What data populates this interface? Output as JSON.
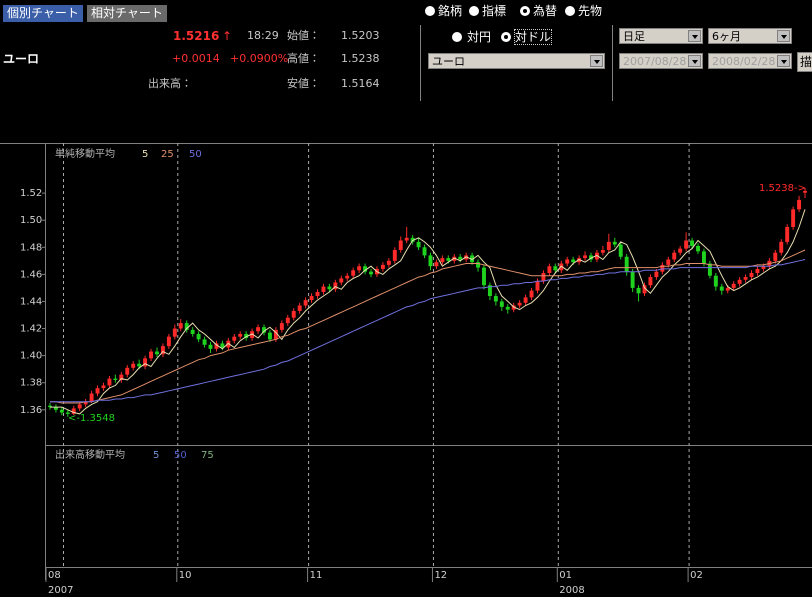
{
  "header": {
    "tabs": [
      "個別チャート",
      "相対チャート"
    ],
    "quote": {
      "name": "ユーロ",
      "price": "1.5216",
      "arrow": "↑",
      "time": "18:29",
      "change": "+0.0014",
      "change_pct": "+0.0900%",
      "open_label": "始値：",
      "open": "1.5203",
      "high_label": "高値：",
      "high": "1.5238",
      "low_label": "安値：",
      "low": "1.5164",
      "volume_label": "出来高："
    }
  },
  "controls": {
    "market_radios": [
      "銘柄",
      "指標",
      "為替",
      "先物"
    ],
    "currency_radios": [
      "対円",
      "対ドル"
    ],
    "currency_select": "ユーロ",
    "period_select": "日足",
    "range_select": "6ヶ月",
    "date_from": "2007/08/28",
    "date_to": "2008/02/28",
    "draw_button": "描"
  },
  "chart_data": {
    "type": "candlestick",
    "legend_title": "単純移動平均",
    "categories": [
      "08",
      null,
      null,
      null,
      null,
      null,
      null,
      null,
      null,
      null,
      null,
      null,
      null,
      null,
      null,
      null,
      null,
      null,
      null,
      null,
      null,
      null,
      "10",
      null,
      null,
      null,
      null,
      null,
      null,
      null,
      null,
      null,
      null,
      null,
      null,
      null,
      null,
      null,
      null,
      null,
      null,
      null,
      null,
      null,
      "11",
      null,
      null,
      null,
      null,
      null,
      null,
      null,
      null,
      null,
      null,
      null,
      null,
      null,
      null,
      null,
      null,
      null,
      null,
      null,
      null,
      "12",
      null,
      null,
      null,
      null,
      null,
      null,
      null,
      null,
      null,
      null,
      null,
      null,
      null,
      null,
      null,
      null,
      null,
      null,
      null,
      null,
      "01",
      null,
      null,
      null,
      null,
      null,
      null,
      null,
      null,
      null,
      null,
      null,
      null,
      null,
      null,
      null,
      null,
      null,
      null,
      null,
      null,
      null,
      "02",
      null,
      null,
      null,
      null,
      null,
      null,
      null,
      null,
      null,
      null,
      null,
      null,
      null,
      null,
      null,
      null,
      null,
      null,
      null
    ],
    "category_years": [
      "2007",
      null,
      null,
      null,
      null,
      null,
      null,
      null,
      null,
      null,
      null,
      null,
      null,
      null,
      null,
      null,
      null,
      null,
      null,
      null,
      null,
      null,
      null,
      null,
      null,
      null,
      null,
      null,
      null,
      null,
      null,
      null,
      null,
      null,
      null,
      null,
      null,
      null,
      null,
      null,
      null,
      null,
      null,
      null,
      null,
      null,
      null,
      null,
      null,
      null,
      null,
      null,
      null,
      null,
      null,
      null,
      null,
      null,
      null,
      null,
      null,
      null,
      null,
      null,
      null,
      null,
      null,
      null,
      null,
      null,
      null,
      null,
      null,
      null,
      null,
      null,
      null,
      null,
      null,
      null,
      null,
      null,
      null,
      null,
      null,
      null,
      "2008",
      null,
      null,
      null,
      null,
      null,
      null,
      null,
      null,
      null,
      null,
      null,
      null,
      null,
      null,
      null,
      null,
      null,
      null,
      null,
      null,
      null,
      null,
      null,
      null,
      null,
      null,
      null,
      null,
      null,
      null,
      null,
      null,
      null,
      null,
      null,
      null,
      null,
      null,
      null,
      null,
      null
    ],
    "open": [
      1.363,
      1.362,
      1.36,
      1.358,
      1.357,
      1.361,
      1.364,
      1.366,
      1.372,
      1.376,
      1.378,
      1.383,
      1.382,
      1.386,
      1.391,
      1.394,
      1.392,
      1.398,
      1.403,
      1.401,
      1.407,
      1.414,
      1.42,
      1.424,
      1.419,
      1.416,
      1.412,
      1.408,
      1.405,
      1.409,
      1.406,
      1.411,
      1.414,
      1.416,
      1.413,
      1.418,
      1.421,
      1.417,
      1.412,
      1.419,
      1.424,
      1.428,
      1.433,
      1.437,
      1.441,
      1.444,
      1.447,
      1.451,
      1.449,
      1.454,
      1.457,
      1.459,
      1.463,
      1.466,
      1.462,
      1.46,
      1.464,
      1.467,
      1.47,
      1.478,
      1.485,
      1.487,
      1.484,
      1.48,
      1.474,
      1.466,
      1.469,
      1.472,
      1.47,
      1.473,
      1.471,
      1.474,
      1.469,
      1.465,
      1.452,
      1.444,
      1.44,
      1.436,
      1.434,
      1.437,
      1.439,
      1.443,
      1.448,
      1.455,
      1.461,
      1.466,
      1.463,
      1.468,
      1.471,
      1.469,
      1.472,
      1.474,
      1.471,
      1.476,
      1.478,
      1.484,
      1.482,
      1.473,
      1.462,
      1.45,
      1.446,
      1.452,
      1.458,
      1.462,
      1.467,
      1.471,
      1.476,
      1.479,
      1.485,
      1.481,
      1.477,
      1.468,
      1.459,
      1.451,
      1.448,
      1.45,
      1.453,
      1.456,
      1.458,
      1.461,
      1.464,
      1.466,
      1.47,
      1.476,
      1.484,
      1.495,
      1.508,
      1.5203
    ],
    "high": [
      1.365,
      1.364,
      1.362,
      1.36,
      1.363,
      1.366,
      1.368,
      1.374,
      1.378,
      1.38,
      1.385,
      1.386,
      1.388,
      1.393,
      1.396,
      1.397,
      1.4,
      1.405,
      1.406,
      1.409,
      1.416,
      1.423,
      1.427,
      1.426,
      1.421,
      1.418,
      1.414,
      1.41,
      1.411,
      1.411,
      1.413,
      1.416,
      1.418,
      1.418,
      1.42,
      1.423,
      1.423,
      1.419,
      1.421,
      1.426,
      1.43,
      1.435,
      1.439,
      1.443,
      1.446,
      1.449,
      1.453,
      1.453,
      1.456,
      1.459,
      1.461,
      1.465,
      1.468,
      1.468,
      1.464,
      1.466,
      1.469,
      1.472,
      1.48,
      1.488,
      1.495,
      1.489,
      1.487,
      1.482,
      1.476,
      1.471,
      1.474,
      1.474,
      1.475,
      1.475,
      1.476,
      1.476,
      1.471,
      1.467,
      1.454,
      1.446,
      1.442,
      1.438,
      1.439,
      1.441,
      1.445,
      1.45,
      1.457,
      1.463,
      1.468,
      1.468,
      1.47,
      1.473,
      1.473,
      1.474,
      1.477,
      1.476,
      1.478,
      1.481,
      1.49,
      1.487,
      1.484,
      1.475,
      1.464,
      1.452,
      1.454,
      1.46,
      1.464,
      1.469,
      1.473,
      1.478,
      1.481,
      1.491,
      1.487,
      1.483,
      1.479,
      1.47,
      1.461,
      1.453,
      1.452,
      1.455,
      1.458,
      1.46,
      1.463,
      1.466,
      1.468,
      1.472,
      1.478,
      1.486,
      1.497,
      1.51,
      1.518,
      1.5238
    ],
    "low": [
      1.36,
      1.358,
      1.356,
      1.3548,
      1.356,
      1.359,
      1.362,
      1.365,
      1.37,
      1.374,
      1.376,
      1.38,
      1.38,
      1.384,
      1.389,
      1.39,
      1.39,
      1.396,
      1.399,
      1.399,
      1.405,
      1.412,
      1.418,
      1.417,
      1.414,
      1.41,
      1.406,
      1.402,
      1.403,
      1.404,
      1.404,
      1.409,
      1.412,
      1.411,
      1.411,
      1.416,
      1.415,
      1.41,
      1.41,
      1.417,
      1.422,
      1.426,
      1.431,
      1.435,
      1.439,
      1.442,
      1.445,
      1.447,
      1.447,
      1.452,
      1.455,
      1.457,
      1.461,
      1.46,
      1.458,
      1.458,
      1.462,
      1.465,
      1.468,
      1.476,
      1.483,
      1.482,
      1.478,
      1.472,
      1.463,
      1.464,
      1.467,
      1.468,
      1.468,
      1.469,
      1.469,
      1.467,
      1.462,
      1.449,
      1.441,
      1.437,
      1.433,
      1.431,
      1.432,
      1.435,
      1.437,
      1.441,
      1.446,
      1.453,
      1.459,
      1.461,
      1.461,
      1.466,
      1.467,
      1.467,
      1.47,
      1.469,
      1.469,
      1.474,
      1.476,
      1.48,
      1.471,
      1.459,
      1.447,
      1.44,
      1.444,
      1.45,
      1.456,
      1.46,
      1.465,
      1.469,
      1.474,
      1.477,
      1.479,
      1.475,
      1.466,
      1.457,
      1.448,
      1.445,
      1.446,
      1.448,
      1.451,
      1.454,
      1.456,
      1.459,
      1.462,
      1.464,
      1.468,
      1.474,
      1.482,
      1.493,
      1.506,
      1.5164
    ],
    "close": [
      1.362,
      1.36,
      1.358,
      1.357,
      1.361,
      1.364,
      1.366,
      1.372,
      1.376,
      1.378,
      1.383,
      1.382,
      1.386,
      1.391,
      1.394,
      1.392,
      1.398,
      1.403,
      1.401,
      1.407,
      1.414,
      1.42,
      1.424,
      1.419,
      1.416,
      1.412,
      1.408,
      1.405,
      1.409,
      1.406,
      1.411,
      1.414,
      1.416,
      1.413,
      1.418,
      1.421,
      1.417,
      1.412,
      1.419,
      1.424,
      1.428,
      1.433,
      1.437,
      1.441,
      1.444,
      1.447,
      1.451,
      1.449,
      1.454,
      1.457,
      1.459,
      1.463,
      1.466,
      1.462,
      1.46,
      1.464,
      1.467,
      1.47,
      1.478,
      1.485,
      1.487,
      1.484,
      1.48,
      1.474,
      1.466,
      1.469,
      1.472,
      1.47,
      1.473,
      1.471,
      1.474,
      1.469,
      1.465,
      1.452,
      1.444,
      1.44,
      1.436,
      1.434,
      1.437,
      1.439,
      1.443,
      1.448,
      1.455,
      1.461,
      1.466,
      1.463,
      1.468,
      1.471,
      1.469,
      1.472,
      1.474,
      1.471,
      1.476,
      1.478,
      1.484,
      1.482,
      1.473,
      1.462,
      1.45,
      1.446,
      1.452,
      1.458,
      1.462,
      1.467,
      1.471,
      1.476,
      1.479,
      1.485,
      1.481,
      1.477,
      1.468,
      1.459,
      1.451,
      1.448,
      1.45,
      1.453,
      1.456,
      1.458,
      1.461,
      1.464,
      1.466,
      1.47,
      1.476,
      1.484,
      1.495,
      1.508,
      1.515,
      1.5216
    ],
    "up_color": "#ff2a2a",
    "down_color": "#1ed21e",
    "series": [
      {
        "name": "5",
        "color": "#e8e0b0",
        "values": [
          1.362,
          1.362,
          1.362,
          1.36,
          1.358,
          1.357,
          1.361,
          1.364,
          1.366,
          1.372,
          1.376,
          1.378,
          1.383,
          1.382,
          1.386,
          1.391,
          1.394,
          1.392,
          1.398,
          1.403,
          1.401,
          1.407,
          1.414,
          1.42,
          1.424,
          1.419,
          1.416,
          1.412,
          1.408,
          1.405,
          1.409,
          1.406,
          1.411,
          1.414,
          1.416,
          1.413,
          1.418,
          1.421,
          1.417,
          1.412,
          1.419,
          1.424,
          1.428,
          1.433,
          1.437,
          1.441,
          1.444,
          1.447,
          1.451,
          1.449,
          1.454,
          1.457,
          1.459,
          1.463,
          1.466,
          1.462,
          1.46,
          1.464,
          1.467,
          1.47,
          1.478,
          1.485,
          1.487,
          1.484,
          1.48,
          1.474,
          1.466,
          1.469,
          1.472,
          1.47,
          1.473,
          1.471,
          1.474,
          1.469,
          1.465,
          1.452,
          1.444,
          1.44,
          1.436,
          1.434,
          1.437,
          1.439,
          1.443,
          1.448,
          1.455,
          1.461,
          1.466,
          1.463,
          1.468,
          1.471,
          1.469,
          1.472,
          1.474,
          1.471,
          1.476,
          1.478,
          1.484,
          1.482,
          1.473,
          1.462,
          1.45,
          1.446,
          1.452,
          1.458,
          1.462,
          1.467,
          1.471,
          1.476,
          1.479,
          1.485,
          1.481,
          1.477,
          1.468,
          1.459,
          1.451,
          1.448,
          1.45,
          1.453,
          1.456,
          1.458,
          1.461,
          1.464,
          1.466,
          1.47,
          1.476,
          1.484,
          1.495,
          1.508
        ]
      },
      {
        "name": "25",
        "color": "#e0906a",
        "values": [
          1.366,
          1.366,
          1.365,
          1.365,
          1.365,
          1.365,
          1.366,
          1.366,
          1.367,
          1.368,
          1.369,
          1.37,
          1.371,
          1.373,
          1.375,
          1.377,
          1.379,
          1.381,
          1.383,
          1.385,
          1.387,
          1.389,
          1.391,
          1.393,
          1.395,
          1.397,
          1.398,
          1.4,
          1.401,
          1.402,
          1.404,
          1.405,
          1.406,
          1.407,
          1.408,
          1.409,
          1.41,
          1.411,
          1.412,
          1.414,
          1.415,
          1.417,
          1.419,
          1.42,
          1.422,
          1.424,
          1.426,
          1.428,
          1.43,
          1.432,
          1.434,
          1.436,
          1.438,
          1.44,
          1.442,
          1.444,
          1.446,
          1.448,
          1.45,
          1.452,
          1.454,
          1.456,
          1.458,
          1.459,
          1.461,
          1.462,
          1.464,
          1.465,
          1.466,
          1.467,
          1.468,
          1.468,
          1.468,
          1.467,
          1.466,
          1.465,
          1.464,
          1.463,
          1.462,
          1.461,
          1.46,
          1.459,
          1.459,
          1.459,
          1.459,
          1.459,
          1.459,
          1.46,
          1.46,
          1.461,
          1.461,
          1.462,
          1.462,
          1.463,
          1.464,
          1.465,
          1.465,
          1.465,
          1.465,
          1.465,
          1.465,
          1.465,
          1.465,
          1.466,
          1.466,
          1.467,
          1.467,
          1.468,
          1.468,
          1.468,
          1.468,
          1.467,
          1.467,
          1.466,
          1.466,
          1.466,
          1.466,
          1.466,
          1.466,
          1.467,
          1.467,
          1.468,
          1.469,
          1.47,
          1.472,
          1.474,
          1.476,
          1.478
        ]
      },
      {
        "name": "50",
        "color": "#7070e0",
        "values": [
          1.366,
          1.366,
          1.366,
          1.366,
          1.366,
          1.366,
          1.366,
          1.366,
          1.367,
          1.367,
          1.367,
          1.368,
          1.368,
          1.369,
          1.369,
          1.37,
          1.371,
          1.371,
          1.372,
          1.373,
          1.374,
          1.375,
          1.376,
          1.377,
          1.378,
          1.379,
          1.38,
          1.381,
          1.382,
          1.383,
          1.384,
          1.385,
          1.386,
          1.387,
          1.388,
          1.389,
          1.39,
          1.392,
          1.393,
          1.395,
          1.396,
          1.398,
          1.4,
          1.402,
          1.404,
          1.406,
          1.408,
          1.41,
          1.412,
          1.414,
          1.416,
          1.418,
          1.42,
          1.422,
          1.424,
          1.426,
          1.428,
          1.43,
          1.432,
          1.434,
          1.436,
          1.437,
          1.439,
          1.44,
          1.442,
          1.443,
          1.444,
          1.445,
          1.446,
          1.447,
          1.448,
          1.449,
          1.45,
          1.45,
          1.451,
          1.451,
          1.452,
          1.452,
          1.453,
          1.453,
          1.454,
          1.454,
          1.455,
          1.455,
          1.456,
          1.456,
          1.457,
          1.457,
          1.458,
          1.458,
          1.459,
          1.459,
          1.46,
          1.46,
          1.461,
          1.461,
          1.462,
          1.462,
          1.462,
          1.462,
          1.463,
          1.463,
          1.463,
          1.464,
          1.464,
          1.464,
          1.465,
          1.465,
          1.465,
          1.465,
          1.465,
          1.465,
          1.465,
          1.465,
          1.465,
          1.465,
          1.465,
          1.465,
          1.466,
          1.466,
          1.466,
          1.466,
          1.467,
          1.467,
          1.468,
          1.469,
          1.47,
          1.471
        ]
      }
    ],
    "ylim": [
      1.334,
      1.557
    ],
    "yticks": [
      1.36,
      1.38,
      {
        "value": 1.4,
        "label": "1.40"
      },
      1.42,
      1.44,
      1.46,
      1.48,
      {
        "value": 1.5,
        "label": "1.50"
      },
      1.52
    ],
    "annotations": [
      "1.5238->",
      "<-1.3548"
    ],
    "volume_panel": {
      "legend_title": "出来高移動平均",
      "series": [
        {
          "name": "5",
          "color": "#7090d0"
        },
        {
          "name": "50",
          "color": "#5060d0"
        },
        {
          "name": "75",
          "color": "#80b080"
        }
      ]
    }
  }
}
